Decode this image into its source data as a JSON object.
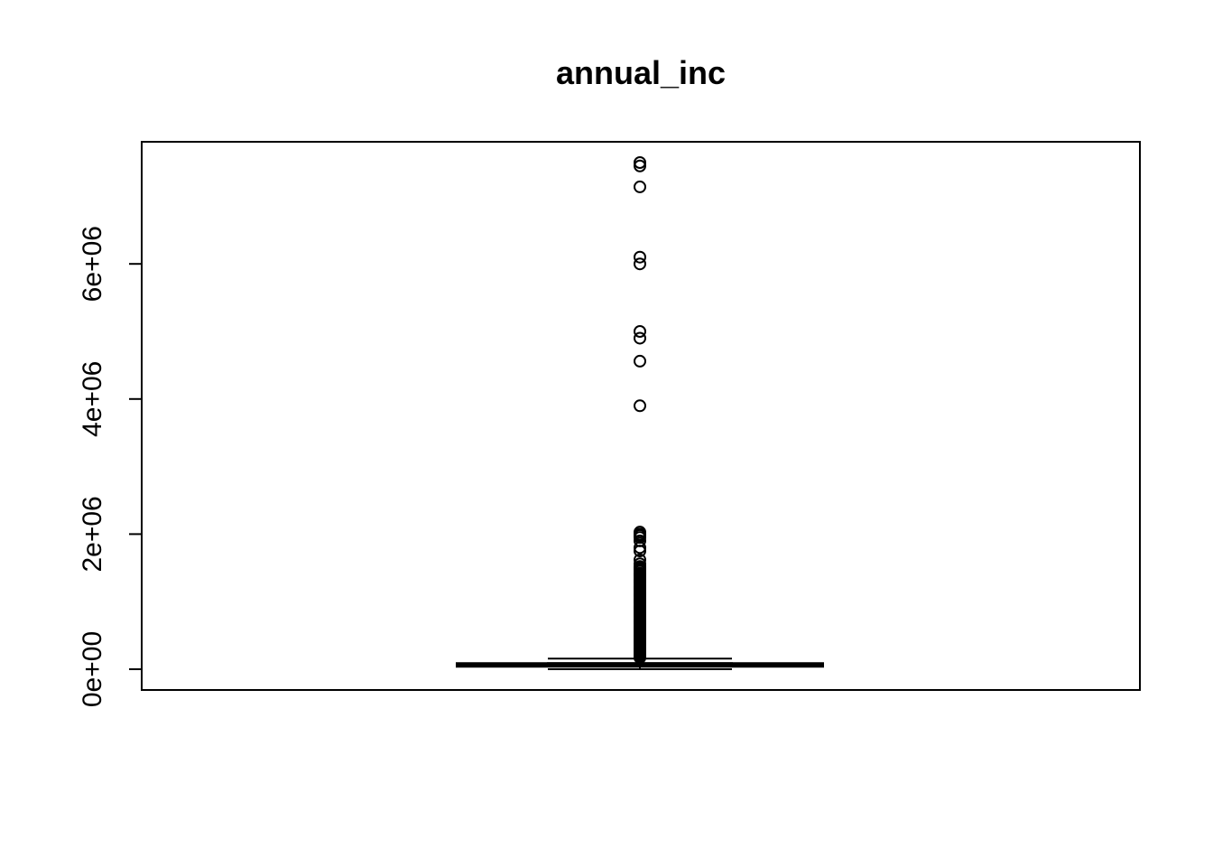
{
  "chart_data": {
    "type": "boxplot",
    "title": "annual_inc",
    "xlabel": "",
    "ylabel": "",
    "ylim": [
      -300000,
      7800000
    ],
    "yticks": [
      {
        "value": 0,
        "label": "0e+00"
      },
      {
        "value": 2000000,
        "label": "2e+06"
      },
      {
        "value": 4000000,
        "label": "4e+06"
      },
      {
        "value": 6000000,
        "label": "6e+06"
      }
    ],
    "grid": false,
    "legend": "none",
    "box": {
      "min": 0,
      "q1": 45000,
      "median": 64000,
      "q3": 90000,
      "max": 157500
    },
    "outliers": [
      7500000,
      7450000,
      7140000,
      6100000,
      6000000,
      5000000,
      4900000,
      4560000,
      3900000,
      2030000,
      2000000,
      1980000,
      1950000,
      1900000,
      1800000,
      1750000,
      1620000,
      1560000,
      1520000,
      1500000,
      1480000,
      1450000,
      1420000,
      1400000,
      1380000,
      1350000,
      1320000,
      1300000,
      1280000,
      1250000,
      1220000,
      1200000,
      1180000,
      1150000,
      1120000,
      1100000,
      1080000,
      1050000,
      1020000,
      1000000,
      980000,
      950000,
      920000,
      900000,
      880000,
      850000,
      820000,
      800000,
      780000,
      750000,
      720000,
      700000,
      680000,
      650000,
      620000,
      600000,
      580000,
      550000,
      520000,
      500000,
      480000,
      450000,
      420000,
      400000,
      380000,
      350000,
      320000,
      300000,
      280000,
      260000,
      240000,
      220000,
      200000,
      185000,
      170000
    ]
  }
}
